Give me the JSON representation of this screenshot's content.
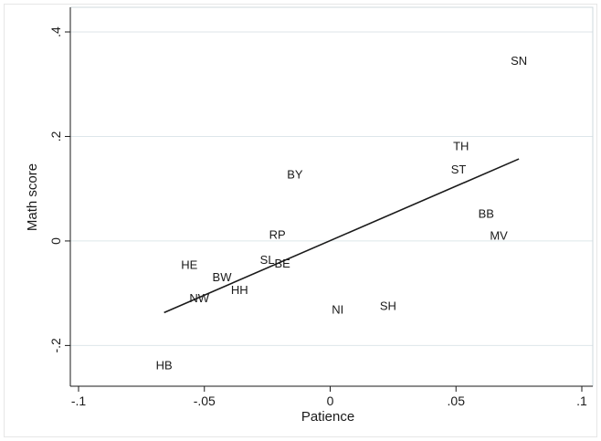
{
  "chart_data": {
    "type": "scatter",
    "xlabel": "Patience",
    "ylabel": "Math score",
    "xlim": [
      -0.1,
      0.1
    ],
    "ylim": [
      -0.25,
      0.4
    ],
    "x_ticks": [
      {
        "value": -0.1,
        "label": "-.1"
      },
      {
        "value": -0.05,
        "label": "-.05"
      },
      {
        "value": 0,
        "label": "0"
      },
      {
        "value": 0.05,
        "label": ".05"
      },
      {
        "value": 0.1,
        "label": ".1"
      }
    ],
    "y_ticks": [
      {
        "value": -0.2,
        "label": "-.2"
      },
      {
        "value": 0,
        "label": "0"
      },
      {
        "value": 0.2,
        "label": ".2"
      },
      {
        "value": 0.4,
        "label": ".4"
      }
    ],
    "grid": "horizontal",
    "points": [
      {
        "label": "SN",
        "x": 0.075,
        "y": 0.345
      },
      {
        "label": "TH",
        "x": 0.052,
        "y": 0.182
      },
      {
        "label": "ST",
        "x": 0.051,
        "y": 0.137
      },
      {
        "label": "BY",
        "x": -0.014,
        "y": 0.127
      },
      {
        "label": "BB",
        "x": 0.062,
        "y": 0.052
      },
      {
        "label": "MV",
        "x": 0.067,
        "y": 0.01
      },
      {
        "label": "RP",
        "x": -0.021,
        "y": 0.012
      },
      {
        "label": "SL",
        "x": -0.025,
        "y": -0.036
      },
      {
        "label": "BE",
        "x": -0.019,
        "y": -0.043
      },
      {
        "label": "HE",
        "x": -0.056,
        "y": -0.046
      },
      {
        "label": "BW",
        "x": -0.043,
        "y": -0.069
      },
      {
        "label": "HH",
        "x": -0.036,
        "y": -0.094
      },
      {
        "label": "NW",
        "x": -0.052,
        "y": -0.109
      },
      {
        "label": "SH",
        "x": 0.023,
        "y": -0.124
      },
      {
        "label": "NI",
        "x": 0.003,
        "y": -0.131
      },
      {
        "label": "HB",
        "x": -0.066,
        "y": -0.238
      }
    ],
    "fit_line": {
      "x": [
        -0.066,
        0.075
      ],
      "y": [
        -0.137,
        0.157
      ]
    }
  }
}
